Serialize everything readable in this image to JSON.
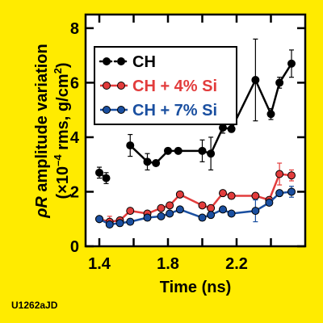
{
  "figure_id": "U1262aJD",
  "chart_data": {
    "type": "line",
    "xlabel": "Time (ns)",
    "ylabel_line1_prefix": "",
    "ylabel_symbol": "ρR",
    "ylabel_line1_suffix": " amplitude variation",
    "ylabel_line2_prefix": "(×10",
    "ylabel_line2_exp": "–4",
    "ylabel_line2_mid": " rms, g/cm",
    "ylabel_line2_exp2": "2",
    "ylabel_line2_suffix": ")",
    "xlim": [
      1.32,
      2.6
    ],
    "ylim": [
      0,
      8.5
    ],
    "xticks": [
      1.4,
      1.8,
      2.2
    ],
    "xtick_labels": [
      "1.4",
      "1.8",
      "2.2"
    ],
    "xticks_minor": [
      1.4,
      1.6,
      1.8,
      2.0,
      2.2,
      2.4
    ],
    "yticks": [
      0,
      2,
      4,
      6,
      8
    ],
    "ytick_labels": [
      "0",
      "2",
      "4",
      "6",
      "8"
    ],
    "legend_position": "upper-left",
    "series": [
      {
        "name": "CH",
        "color": "#000000",
        "style": "dotted-line",
        "points": [
          {
            "x": 1.4,
            "y": 2.7,
            "err": 0.2
          },
          {
            "x": 1.44,
            "y": 2.5,
            "err": 0.2
          }
        ]
      },
      {
        "name": "CH",
        "color": "#000000",
        "style": "solid-line",
        "points": [
          {
            "x": 1.58,
            "y": 3.7,
            "err": 0.4
          },
          {
            "x": 1.68,
            "y": 3.1,
            "err": 0.3
          },
          {
            "x": 1.73,
            "y": 3.05,
            "err": 0.1
          },
          {
            "x": 1.8,
            "y": 3.5,
            "err": 0.1
          },
          {
            "x": 1.86,
            "y": 3.5,
            "err": 0.1
          },
          {
            "x": 2.0,
            "y": 3.5,
            "err": 0.4
          },
          {
            "x": 2.05,
            "y": 3.4,
            "err": 0.6
          },
          {
            "x": 2.12,
            "y": 4.35,
            "err": 0.2
          },
          {
            "x": 2.17,
            "y": 4.3,
            "err": 0.1
          },
          {
            "x": 2.31,
            "y": 6.1,
            "err": 1.5
          },
          {
            "x": 2.4,
            "y": 4.85,
            "err": 0.2
          },
          {
            "x": 2.45,
            "y": 6.0,
            "err": 0.2
          },
          {
            "x": 2.52,
            "y": 6.7,
            "err": 0.5
          }
        ]
      },
      {
        "name": "CH + 4% Si",
        "color": "#e23c3c",
        "style": "solid-line",
        "points": [
          {
            "x": 1.4,
            "y": 1.0,
            "err": 0.1
          },
          {
            "x": 1.46,
            "y": 0.9,
            "err": 0.2
          },
          {
            "x": 1.52,
            "y": 0.95,
            "err": 0.1
          },
          {
            "x": 1.58,
            "y": 1.3,
            "err": 0.1
          },
          {
            "x": 1.68,
            "y": 1.2,
            "err": 0.1
          },
          {
            "x": 1.76,
            "y": 1.4,
            "err": 0.1
          },
          {
            "x": 1.81,
            "y": 1.5,
            "err": 0.1
          },
          {
            "x": 1.87,
            "y": 1.9,
            "err": 0.1
          },
          {
            "x": 2.0,
            "y": 1.5,
            "err": 0.1
          },
          {
            "x": 2.05,
            "y": 1.4,
            "err": 0.1
          },
          {
            "x": 2.12,
            "y": 1.95,
            "err": 0.1
          },
          {
            "x": 2.17,
            "y": 1.85,
            "err": 0.1
          },
          {
            "x": 2.31,
            "y": 1.85,
            "err": 0.1
          },
          {
            "x": 2.39,
            "y": 1.7,
            "err": 0.1
          },
          {
            "x": 2.45,
            "y": 2.65,
            "err": 0.4
          },
          {
            "x": 2.52,
            "y": 2.6,
            "err": 0.2
          }
        ]
      },
      {
        "name": "CH + 7% Si",
        "color": "#1a4fa0",
        "style": "solid-line",
        "points": [
          {
            "x": 1.4,
            "y": 1.0,
            "err": 0.1
          },
          {
            "x": 1.46,
            "y": 0.8,
            "err": 0.1
          },
          {
            "x": 1.52,
            "y": 0.85,
            "err": 0.1
          },
          {
            "x": 1.58,
            "y": 0.9,
            "err": 0.1
          },
          {
            "x": 1.68,
            "y": 1.05,
            "err": 0.1
          },
          {
            "x": 1.76,
            "y": 1.1,
            "err": 0.1
          },
          {
            "x": 1.81,
            "y": 1.2,
            "err": 0.1
          },
          {
            "x": 1.87,
            "y": 1.35,
            "err": 0.1
          },
          {
            "x": 2.0,
            "y": 1.05,
            "err": 0.1
          },
          {
            "x": 2.05,
            "y": 1.15,
            "err": 0.1
          },
          {
            "x": 2.12,
            "y": 1.35,
            "err": 0.1
          },
          {
            "x": 2.17,
            "y": 1.2,
            "err": 0.1
          },
          {
            "x": 2.31,
            "y": 1.3,
            "err": 0.4
          },
          {
            "x": 2.39,
            "y": 1.6,
            "err": 0.1
          },
          {
            "x": 2.45,
            "y": 1.95,
            "err": 0.1
          },
          {
            "x": 2.52,
            "y": 2.0,
            "err": 0.2
          }
        ]
      }
    ],
    "legend": [
      {
        "label": "CH",
        "color": "#000000",
        "text_color": "#000000",
        "line_dotted": true
      },
      {
        "label": "CH + 4% Si",
        "color": "#e23c3c",
        "text_color": "#e23c3c",
        "line_dotted": false
      },
      {
        "label": "CH + 7% Si",
        "color": "#1a4fa0",
        "text_color": "#1a4fa0",
        "line_dotted": false
      }
    ]
  }
}
